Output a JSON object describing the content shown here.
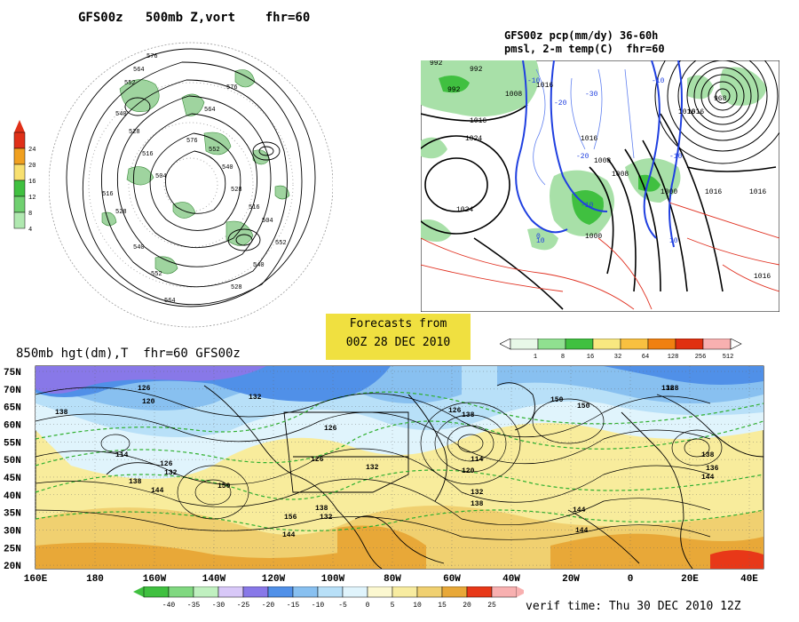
{
  "panel_hemi": {
    "title": "GFS00z   500mb Z,vort    fhr=60",
    "contour_labels": [
      "576",
      "564",
      "552",
      "540",
      "528",
      "516",
      "504",
      "516",
      "528",
      "540",
      "552",
      "564",
      "576",
      "552",
      "540",
      "528",
      "516",
      "504",
      "552",
      "564",
      "576",
      "540",
      "528"
    ],
    "colorbar": {
      "levels": [
        "24",
        "20",
        "16",
        "12",
        "8",
        "4"
      ],
      "colors": [
        "#e03018",
        "#f0a020",
        "#f8e070",
        "#40c040",
        "#70d070",
        "#b0e8b0"
      ]
    }
  },
  "panel_pop": {
    "title_line1": "GFS00z pcp(mm/dy) 36-60h",
    "title_line2": "pmsl, 2-m temp(C)  fhr=60",
    "pressure_labels": [
      "992",
      "992",
      "1008",
      "1016",
      "1016",
      "1024",
      "1016",
      "1008",
      "1000",
      "1024",
      "1016",
      "992",
      "968",
      "1016",
      "1008",
      "1000",
      "1016",
      "1016",
      "1016"
    ],
    "temp_labels": [
      "-10",
      "-20",
      "-30",
      "-20",
      "-10",
      "0",
      "10",
      "-10",
      "10",
      "-10"
    ],
    "colorbar": {
      "levels": [
        "1",
        "8",
        "16",
        "32",
        "64",
        "128",
        "256",
        "512"
      ],
      "colors": [
        "#e8f8e8",
        "#90e090",
        "#40c040",
        "#f8e880",
        "#f8c040",
        "#f08010",
        "#e03010",
        "#f8b0b0"
      ]
    }
  },
  "forecast_box": {
    "line1": "Forecasts from",
    "line2": "00Z 28 DEC 2010",
    "bg": "#f0e040"
  },
  "panel_850": {
    "title": "850mb hgt(dm),T  fhr=60 GFS00z",
    "lat_ticks": [
      "75N",
      "70N",
      "65N",
      "60N",
      "55N",
      "50N",
      "45N",
      "40N",
      "35N",
      "30N",
      "25N",
      "20N"
    ],
    "lon_ticks": [
      "160E",
      "180",
      "160W",
      "140W",
      "120W",
      "100W",
      "80W",
      "60W",
      "40W",
      "20W",
      "0",
      "20E",
      "40E"
    ],
    "height_labels": [
      "138",
      "126",
      "120",
      "132",
      "126",
      "114",
      "126",
      "132",
      "138",
      "144",
      "150",
      "156",
      "144",
      "138",
      "132",
      "126",
      "132",
      "126",
      "138",
      "114",
      "120",
      "132",
      "138",
      "144",
      "150",
      "144",
      "150",
      "138",
      "138",
      "136",
      "144",
      "128"
    ],
    "temp_colorbar": {
      "levels": [
        "-40",
        "-35",
        "-30",
        "-25",
        "-20",
        "-15",
        "-10",
        "-5",
        "0",
        "5",
        "10",
        "15",
        "20",
        "25"
      ],
      "colors": [
        "#40c040",
        "#80d880",
        "#c0f0c0",
        "#d8c8f8",
        "#8878e8",
        "#5090e8",
        "#88c0f0",
        "#b8e0f8",
        "#e0f4fc",
        "#fcf8d0",
        "#f8eca0",
        "#f0d070",
        "#e8a838",
        "#e83818",
        "#f8b0b0"
      ]
    },
    "verif_time": "verif time: Thu 30 DEC 2010 12Z"
  }
}
